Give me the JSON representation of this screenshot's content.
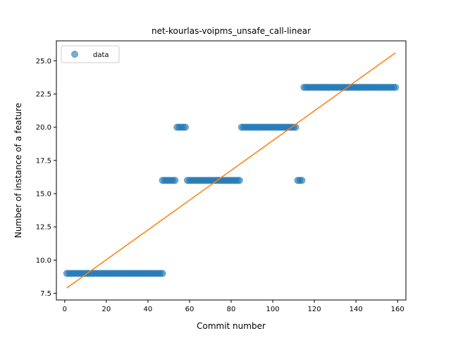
{
  "chart_data": {
    "type": "scatter",
    "title": "net-kourlas-voipms_unsafe_call-linear",
    "xlabel": "Commit number",
    "ylabel": "Number of instance of a feature",
    "xlim": [
      -4,
      164
    ],
    "ylim": [
      7.0,
      26.5
    ],
    "xticks": [
      0,
      20,
      40,
      60,
      80,
      100,
      120,
      140,
      160
    ],
    "yticks": [
      7.5,
      10.0,
      12.5,
      15.0,
      17.5,
      20.0,
      22.5,
      25.0
    ],
    "ytick_labels": [
      "7.5",
      "10.0",
      "12.5",
      "15.0",
      "17.5",
      "20.0",
      "22.5",
      "25.0"
    ],
    "xtick_labels": [
      "0",
      "20",
      "40",
      "60",
      "80",
      "100",
      "120",
      "140",
      "160"
    ],
    "legend": {
      "placement": "upper-left",
      "entries": [
        "data"
      ]
    },
    "grid": false,
    "series": [
      {
        "name": "data",
        "kind": "scatter",
        "color": "#1f77b4",
        "segments": [
          {
            "x_start": 1,
            "x_end": 47,
            "y": 9
          },
          {
            "x_start": 47,
            "x_end": 53,
            "y": 16
          },
          {
            "x_start": 54,
            "x_end": 58,
            "y": 20
          },
          {
            "x_start": 59,
            "x_end": 84,
            "y": 16
          },
          {
            "x_start": 85,
            "x_end": 111,
            "y": 20
          },
          {
            "x_start": 112,
            "x_end": 114,
            "y": 16
          },
          {
            "x_start": 115,
            "x_end": 159,
            "y": 23
          }
        ]
      },
      {
        "name": "",
        "kind": "line",
        "color": "#ff7f0e",
        "x": [
          1,
          159
        ],
        "y": [
          7.9,
          25.6
        ]
      }
    ]
  }
}
